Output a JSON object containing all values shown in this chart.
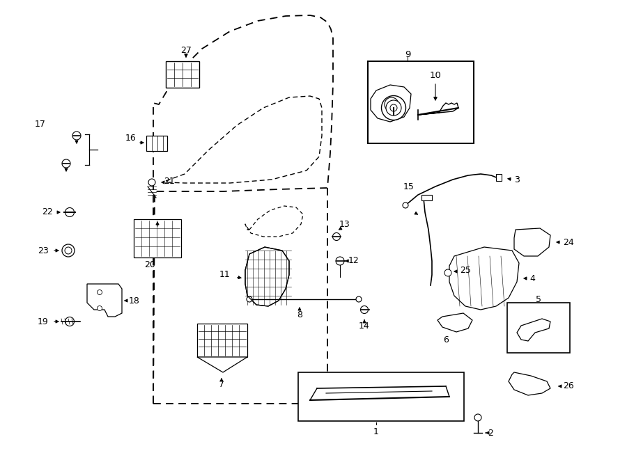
{
  "bg_color": "#ffffff",
  "fig_width": 9.0,
  "fig_height": 6.61,
  "dpi": 100
}
